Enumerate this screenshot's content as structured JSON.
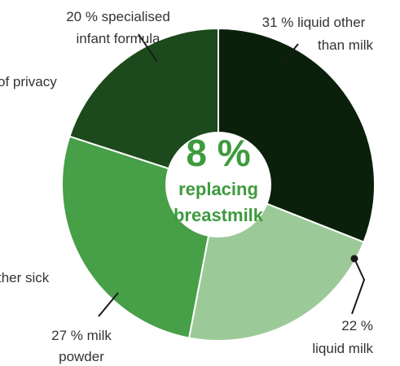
{
  "chart_data": {
    "type": "donut",
    "labels": [
      [
        "31 % liquid other",
        "than milk"
      ],
      [
        "22 %",
        "liquid milk"
      ],
      [
        "27 % milk",
        "powder"
      ],
      [
        "20  %  specialised",
        "infant formula"
      ]
    ],
    "values": [
      31,
      22,
      27,
      20
    ],
    "colors": [
      "#0b200b",
      "#9cc998",
      "#479f47",
      "#1d4a1d"
    ],
    "center": {
      "headline": "8 %",
      "lines": [
        "replacing",
        "breastmilk"
      ]
    },
    "annotations": [
      "of privacy",
      "ther sick"
    ]
  }
}
